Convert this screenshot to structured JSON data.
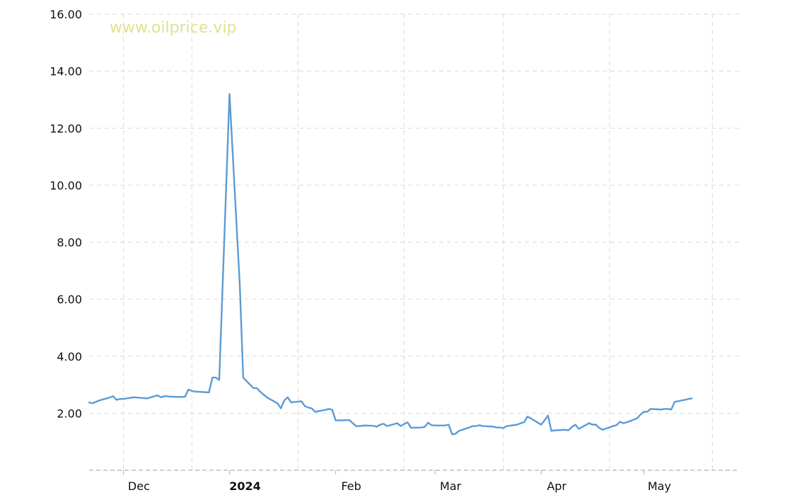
{
  "watermark": "www.oilprice.vip",
  "colors": {
    "line": "#5b9bd5",
    "grid": "#d9d9d9",
    "watermark": "#dfe38e"
  },
  "chart_data": {
    "type": "line",
    "title": "",
    "xlabel": "",
    "ylabel": "",
    "grid": true,
    "ylim": [
      0,
      16
    ],
    "y_ticks": [
      "16.00",
      "14.00",
      "12.00",
      "10.00",
      "8.00",
      "6.00",
      "4.00",
      "2.00"
    ],
    "y_tick_values": [
      16,
      14,
      12,
      10,
      8,
      6,
      4,
      2
    ],
    "x_range": [
      "2023-11-21",
      "2024-05-29"
    ],
    "x_ticks": [
      {
        "label": "Dec",
        "date": "2023-12-01",
        "bold": false
      },
      {
        "label": "2024",
        "date": "2024-01-01",
        "bold": true
      },
      {
        "label": "Feb",
        "date": "2024-02-01",
        "bold": false
      },
      {
        "label": "Mar",
        "date": "2024-03-01",
        "bold": false
      },
      {
        "label": "Apr",
        "date": "2024-04-01",
        "bold": false
      },
      {
        "label": "May",
        "date": "2024-05-01",
        "bold": false
      }
    ],
    "x_grid_dates": [
      "2023-12-01",
      "2023-12-21",
      "2024-01-21",
      "2024-02-21",
      "2024-03-21",
      "2024-04-21",
      "2024-05-21"
    ],
    "series": [
      {
        "x": [
          "2023-11-21",
          "2023-11-22",
          "2023-11-24",
          "2023-11-27",
          "2023-11-28",
          "2023-11-29",
          "2023-11-30",
          "2023-12-01",
          "2023-12-04",
          "2023-12-05",
          "2023-12-06",
          "2023-12-07",
          "2023-12-08",
          "2023-12-11",
          "2023-12-12",
          "2023-12-13",
          "2023-12-14",
          "2023-12-15",
          "2023-12-18",
          "2023-12-19",
          "2023-12-20",
          "2023-12-21",
          "2023-12-22",
          "2023-12-26",
          "2023-12-27",
          "2023-12-28",
          "2023-12-29",
          "2024-01-01",
          "2024-01-04",
          "2024-01-05",
          "2024-01-08",
          "2024-01-09",
          "2024-01-10",
          "2024-01-11",
          "2024-01-12",
          "2024-01-15",
          "2024-01-16",
          "2024-01-17",
          "2024-01-18",
          "2024-01-19",
          "2024-01-22",
          "2024-01-23",
          "2024-01-24",
          "2024-01-25",
          "2024-01-26",
          "2024-01-29",
          "2024-01-30",
          "2024-01-31",
          "2024-02-01",
          "2024-02-02",
          "2024-02-05",
          "2024-02-06",
          "2024-02-07",
          "2024-02-08",
          "2024-02-09",
          "2024-02-12",
          "2024-02-13",
          "2024-02-14",
          "2024-02-15",
          "2024-02-16",
          "2024-02-19",
          "2024-02-20",
          "2024-02-21",
          "2024-02-22",
          "2024-02-23",
          "2024-02-26",
          "2024-02-27",
          "2024-02-28",
          "2024-02-29",
          "2024-03-01",
          "2024-03-04",
          "2024-03-05",
          "2024-03-06",
          "2024-03-07",
          "2024-03-08",
          "2024-03-11",
          "2024-03-12",
          "2024-03-13",
          "2024-03-14",
          "2024-03-15",
          "2024-03-18",
          "2024-03-19",
          "2024-03-20",
          "2024-03-21",
          "2024-03-22",
          "2024-03-25",
          "2024-03-26",
          "2024-03-27",
          "2024-03-28",
          "2024-03-29",
          "2024-04-01",
          "2024-04-02",
          "2024-04-03",
          "2024-04-04",
          "2024-04-05",
          "2024-04-08",
          "2024-04-09",
          "2024-04-10",
          "2024-04-11",
          "2024-04-12",
          "2024-04-15",
          "2024-04-16",
          "2024-04-17",
          "2024-04-18",
          "2024-04-19",
          "2024-04-22",
          "2024-04-23",
          "2024-04-24",
          "2024-04-25",
          "2024-04-26",
          "2024-04-29",
          "2024-04-30",
          "2024-05-01",
          "2024-05-02",
          "2024-05-03",
          "2024-05-06",
          "2024-05-07",
          "2024-05-08",
          "2024-05-09",
          "2024-05-10",
          "2024-05-13",
          "2024-05-14",
          "2024-05-15"
        ],
        "y": [
          2.38,
          2.35,
          2.45,
          2.55,
          2.6,
          2.47,
          2.5,
          2.5,
          2.56,
          2.55,
          2.54,
          2.53,
          2.52,
          2.63,
          2.56,
          2.6,
          2.59,
          2.58,
          2.57,
          2.58,
          2.83,
          2.78,
          2.76,
          2.73,
          3.25,
          3.25,
          3.17,
          13.2,
          6.5,
          3.25,
          2.88,
          2.88,
          2.75,
          2.65,
          2.55,
          2.35,
          2.17,
          2.45,
          2.56,
          2.38,
          2.42,
          2.25,
          2.2,
          2.17,
          2.05,
          2.12,
          2.15,
          2.12,
          1.75,
          1.75,
          1.76,
          1.65,
          1.55,
          1.55,
          1.57,
          1.56,
          1.53,
          1.6,
          1.63,
          1.55,
          1.65,
          1.55,
          1.62,
          1.68,
          1.49,
          1.5,
          1.52,
          1.67,
          1.58,
          1.57,
          1.57,
          1.6,
          1.26,
          1.28,
          1.38,
          1.5,
          1.55,
          1.55,
          1.58,
          1.55,
          1.53,
          1.5,
          1.5,
          1.48,
          1.55,
          1.6,
          1.65,
          1.68,
          1.88,
          1.82,
          1.6,
          1.75,
          1.92,
          1.38,
          1.4,
          1.42,
          1.4,
          1.52,
          1.6,
          1.45,
          1.65,
          1.6,
          1.6,
          1.48,
          1.42,
          1.55,
          1.58,
          1.7,
          1.65,
          1.68,
          1.82,
          1.95,
          2.05,
          2.05,
          2.15,
          2.13,
          2.15,
          2.15,
          2.13,
          2.4,
          2.47,
          2.5,
          2.52
        ]
      }
    ]
  }
}
